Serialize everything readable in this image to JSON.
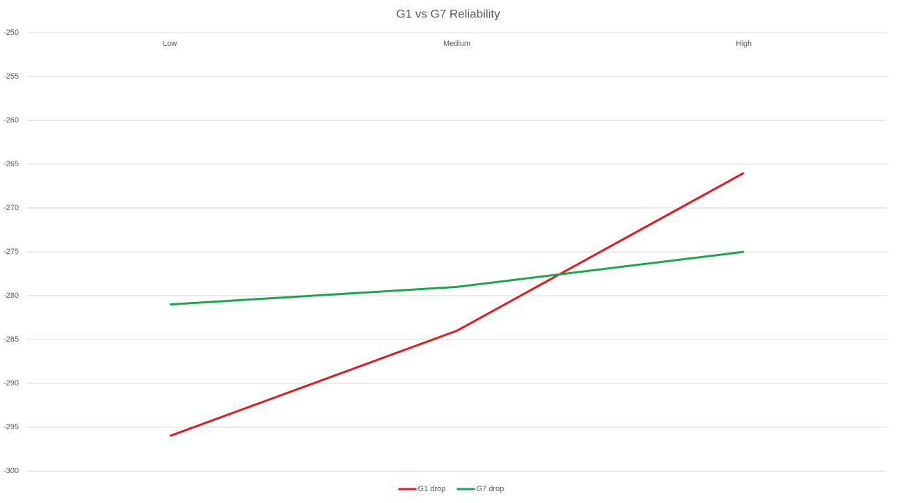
{
  "chart_data": {
    "type": "line",
    "title": "G1 vs G7 Reliability",
    "categories": [
      "Low",
      "Medium",
      "High"
    ],
    "series": [
      {
        "name": "G1 drop",
        "color": "#e31a1c",
        "values": [
          -296,
          -284,
          -266
        ]
      },
      {
        "name": "G7 drop",
        "color": "#1aa64a",
        "values": [
          -281,
          -279,
          -275
        ]
      }
    ],
    "ylim": [
      -300,
      -250
    ],
    "yticks": [
      -300,
      -295,
      -290,
      -285,
      -280,
      -275,
      -270,
      -265,
      -260,
      -255,
      -250
    ],
    "grid": true,
    "legend": "bottom"
  }
}
